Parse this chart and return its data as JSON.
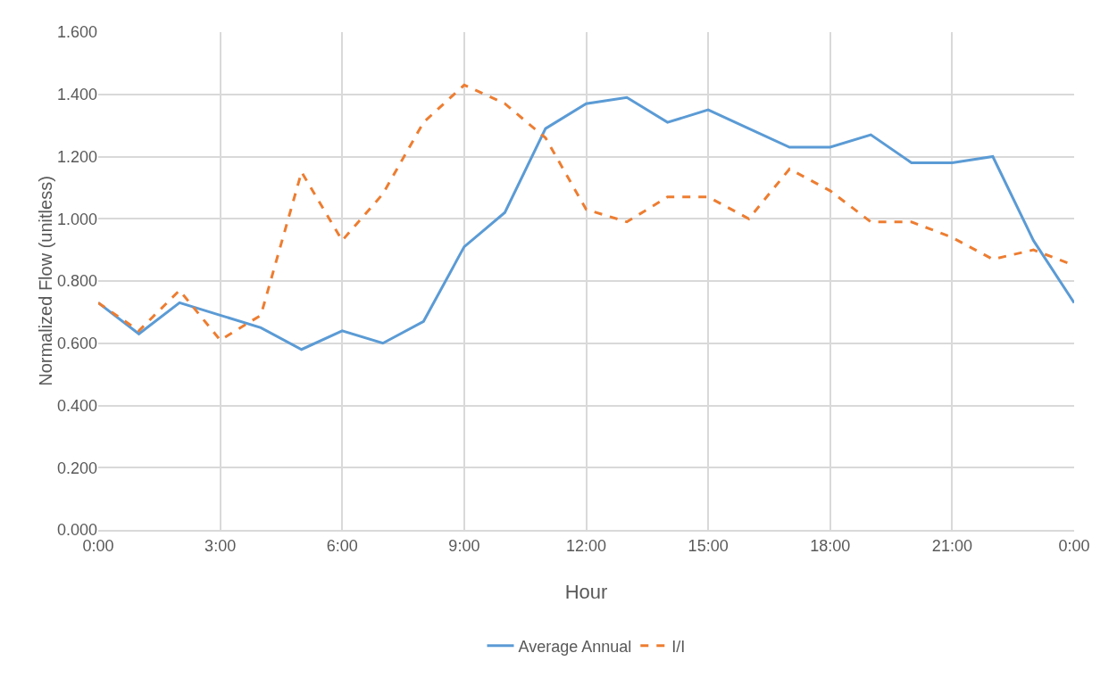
{
  "chart_data": {
    "type": "line",
    "xlabel": "Hour",
    "ylabel": "Normalized Flow (unitless)",
    "x": [
      0,
      1,
      2,
      3,
      4,
      5,
      6,
      7,
      8,
      9,
      10,
      11,
      12,
      13,
      14,
      15,
      16,
      17,
      18,
      19,
      20,
      21,
      22,
      23,
      24
    ],
    "series": [
      {
        "name": "Average Annual",
        "color": "#5b9bd5",
        "line_style": "solid",
        "values": [
          0.73,
          0.63,
          0.73,
          0.69,
          0.65,
          0.58,
          0.64,
          0.6,
          0.67,
          0.91,
          1.02,
          1.29,
          1.37,
          1.39,
          1.31,
          1.35,
          1.29,
          1.23,
          1.23,
          1.27,
          1.18,
          1.18,
          1.2,
          0.93,
          0.73
        ]
      },
      {
        "name": "I/I",
        "color": "#ed7d31",
        "line_style": "dashed",
        "values": [
          0.73,
          0.64,
          0.77,
          0.61,
          0.69,
          1.15,
          0.93,
          1.08,
          1.31,
          1.43,
          1.37,
          1.26,
          1.03,
          0.99,
          1.07,
          1.07,
          1.0,
          1.16,
          1.09,
          0.99,
          0.99,
          0.94,
          0.87,
          0.9,
          0.85
        ]
      }
    ],
    "xlim": [
      0,
      24
    ],
    "xticks": [
      {
        "value": 0,
        "label": "0:00"
      },
      {
        "value": 3,
        "label": "3:00"
      },
      {
        "value": 6,
        "label": "6:00"
      },
      {
        "value": 9,
        "label": "9:00"
      },
      {
        "value": 12,
        "label": "12:00"
      },
      {
        "value": 15,
        "label": "15:00"
      },
      {
        "value": 18,
        "label": "18:00"
      },
      {
        "value": 21,
        "label": "21:00"
      },
      {
        "value": 24,
        "label": "0:00"
      }
    ],
    "ylim": [
      0,
      1.6
    ],
    "yticks": [
      {
        "value": 0,
        "label": "0.000"
      },
      {
        "value": 0.2,
        "label": "0.200"
      },
      {
        "value": 0.4,
        "label": "0.400"
      },
      {
        "value": 0.6,
        "label": "0.600"
      },
      {
        "value": 0.8,
        "label": "0.800"
      },
      {
        "value": 1.0,
        "label": "1.000"
      },
      {
        "value": 1.2,
        "label": "1.200"
      },
      {
        "value": 1.4,
        "label": "1.400"
      },
      {
        "value": 1.6,
        "label": "1.600"
      }
    ],
    "grid": true,
    "legend": "bottom",
    "marker": "none"
  }
}
